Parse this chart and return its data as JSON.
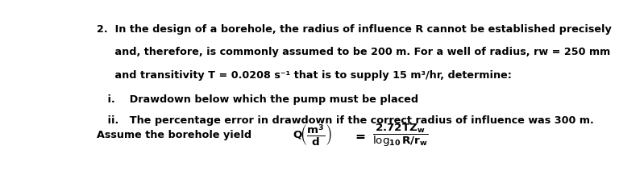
{
  "background_color": "#ffffff",
  "text_color": "#000000",
  "figsize": [
    7.99,
    2.12
  ],
  "dpi": 100,
  "line1": "2.  In the design of a borehole, the radius of influence R cannot be established precisely",
  "line2": "     and, therefore, is commonly assumed to be 200 m. For a well of radius, rw = 250 mm",
  "line3": "     and transitivity T = 0.0208 s⁻¹ that is to supply 15 m³/hr, determine:",
  "item_i": "   i.    Drawdown below which the pump must be placed",
  "item_ii": "   ii.   The percentage error in drawdown if the correct radius of influence was 300 m.",
  "formula_prefix": "Assume the borehole yield ",
  "font_size": 9.2
}
